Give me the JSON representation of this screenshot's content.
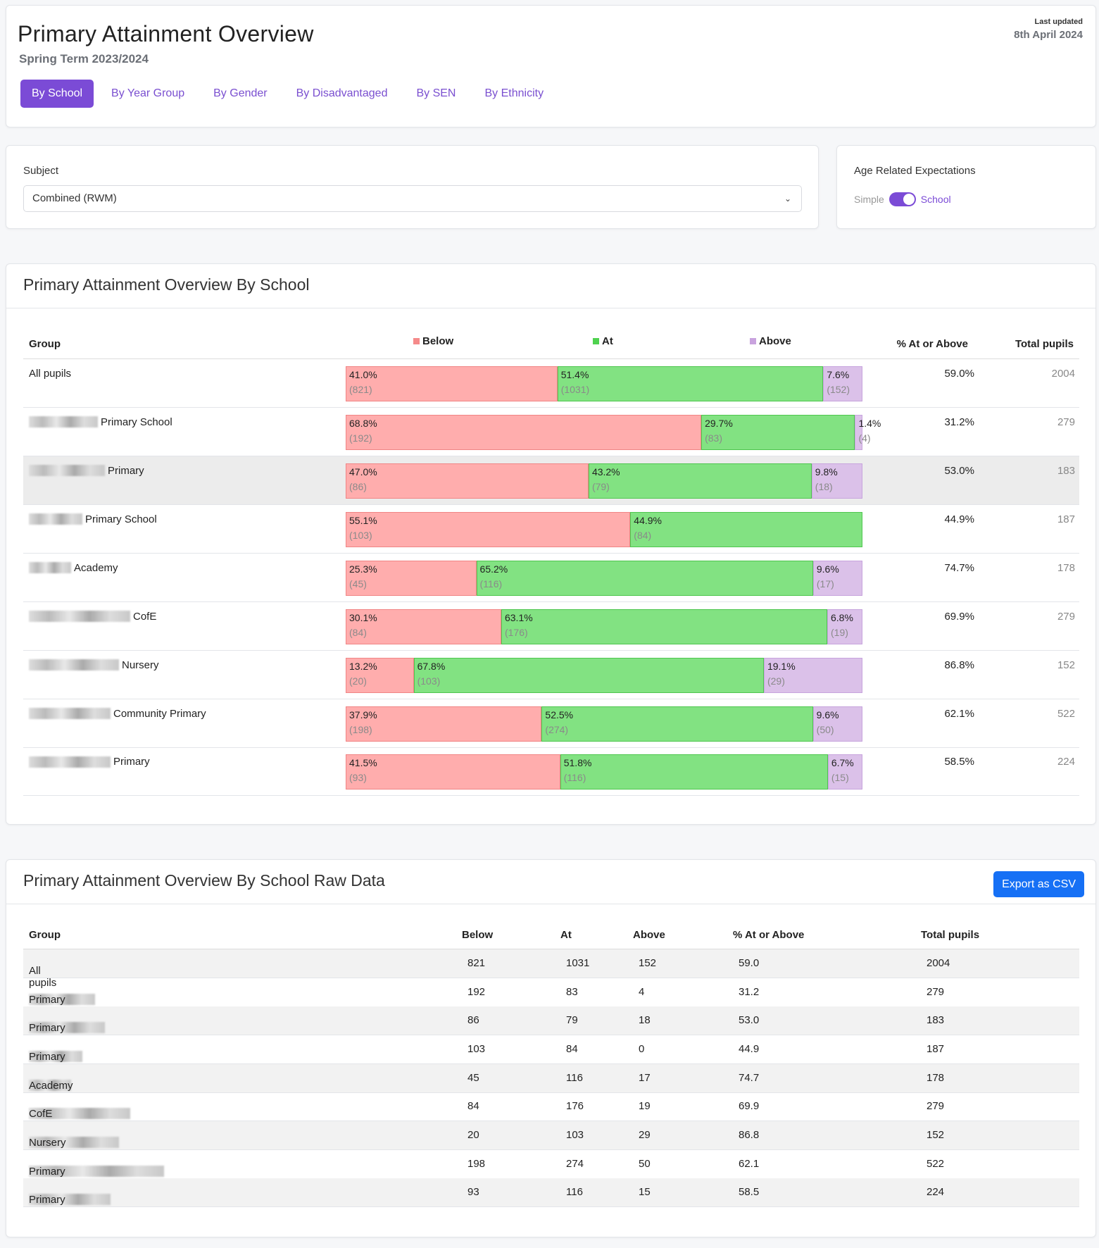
{
  "header": {
    "title": "Primary Attainment Overview",
    "subtitle": "Spring Term 2023/2024",
    "last_updated_label": "Last updated",
    "last_updated": "8th April 2024",
    "tabs": [
      {
        "label": "By School",
        "active": true
      },
      {
        "label": "By Year Group"
      },
      {
        "label": "By Gender"
      },
      {
        "label": "By Disadvantaged"
      },
      {
        "label": "By SEN"
      },
      {
        "label": "By Ethnicity"
      }
    ]
  },
  "filters": {
    "subject_label": "Subject",
    "subject_value": "Combined (RWM)",
    "are_label": "Age Related Expectations",
    "toggle_left": "Simple",
    "toggle_right": "School",
    "toggle_on": true
  },
  "colors": {
    "accent": "#7b4bd6",
    "below": "#ffadad",
    "at": "#82e282",
    "above": "#dbc1e9",
    "export": "#1670f5"
  },
  "chart_data": {
    "type": "bar",
    "stacked": true,
    "orientation": "horizontal",
    "title": "Primary Attainment Overview By School",
    "columns": {
      "group": "Group",
      "pct": "% At or Above",
      "total": "Total pupils"
    },
    "legend": [
      "Below",
      "At",
      "Above"
    ],
    "rows": [
      {
        "prefix_blurred": false,
        "name": "All pupils",
        "below_pct": "41.0%",
        "below": 821,
        "at_pct": "51.4%",
        "at": 1031,
        "above_pct": "7.6%",
        "above": 152,
        "pct": "59.0%",
        "total": 2004
      },
      {
        "prefix_blurred": true,
        "name": "Primary School",
        "below_pct": "68.8%",
        "below": 192,
        "at_pct": "29.7%",
        "at": 83,
        "above_pct": "1.4%",
        "above": 4,
        "pct": "31.2%",
        "total": 279
      },
      {
        "prefix_blurred": true,
        "name": "Primary",
        "below_pct": "47.0%",
        "below": 86,
        "at_pct": "43.2%",
        "at": 79,
        "above_pct": "9.8%",
        "above": 18,
        "pct": "53.0%",
        "total": 183,
        "highlighted": true
      },
      {
        "prefix_blurred": true,
        "name": "Primary School",
        "below_pct": "55.1%",
        "below": 103,
        "at_pct": "44.9%",
        "at": 84,
        "above_pct": "0.0%",
        "above": 0,
        "pct": "44.9%",
        "total": 187
      },
      {
        "prefix_blurred": true,
        "name": "Academy",
        "below_pct": "25.3%",
        "below": 45,
        "at_pct": "65.2%",
        "at": 116,
        "above_pct": "9.6%",
        "above": 17,
        "pct": "74.7%",
        "total": 178
      },
      {
        "prefix_blurred": true,
        "name": "CofE",
        "below_pct": "30.1%",
        "below": 84,
        "at_pct": "63.1%",
        "at": 176,
        "above_pct": "6.8%",
        "above": 19,
        "pct": "69.9%",
        "total": 279
      },
      {
        "prefix_blurred": true,
        "name": "Nursery",
        "below_pct": "13.2%",
        "below": 20,
        "at_pct": "67.8%",
        "at": 103,
        "above_pct": "19.1%",
        "above": 29,
        "pct": "86.8%",
        "total": 152
      },
      {
        "prefix_blurred": true,
        "name": "Community Primary",
        "below_pct": "37.9%",
        "below": 198,
        "at_pct": "52.5%",
        "at": 274,
        "above_pct": "9.6%",
        "above": 50,
        "pct": "62.1%",
        "total": 522
      },
      {
        "prefix_blurred": true,
        "name": "Primary",
        "below_pct": "41.5%",
        "below": 93,
        "at_pct": "51.8%",
        "at": 116,
        "above_pct": "6.7%",
        "above": 15,
        "pct": "58.5%",
        "total": 224
      }
    ]
  },
  "raw": {
    "title": "Primary Attainment Overview By School Raw Data",
    "export_label": "Export as CSV",
    "headers": [
      "Group",
      "Below",
      "At",
      "Above",
      "% At or Above",
      "Total pupils"
    ],
    "rows": [
      [
        "All pupils",
        "821",
        "1031",
        "152",
        "59.0",
        "2004"
      ],
      [
        "Primary School",
        "192",
        "83",
        "4",
        "31.2",
        "279"
      ],
      [
        "Primary",
        "86",
        "79",
        "18",
        "53.0",
        "183"
      ],
      [
        "Primary School",
        "103",
        "84",
        "0",
        "44.9",
        "187"
      ],
      [
        "Academy",
        "45",
        "116",
        "17",
        "74.7",
        "178"
      ],
      [
        "CofE",
        "84",
        "176",
        "19",
        "69.9",
        "279"
      ],
      [
        "Nursery",
        "20",
        "103",
        "29",
        "86.8",
        "152"
      ],
      [
        "Primary",
        "198",
        "274",
        "50",
        "62.1",
        "522"
      ],
      [
        "Primary",
        "93",
        "116",
        "15",
        "58.5",
        "224"
      ]
    ]
  }
}
